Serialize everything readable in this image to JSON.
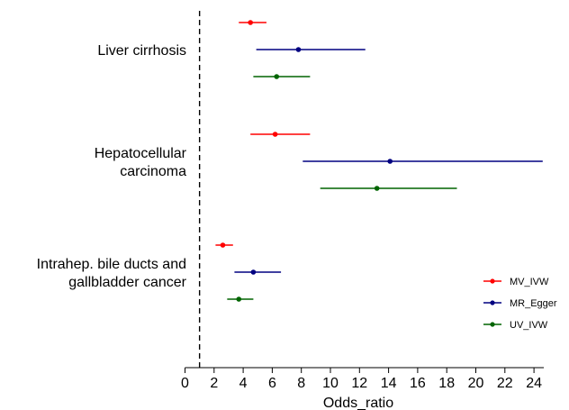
{
  "chart_data": {
    "type": "forest",
    "xlabel": "Odds_ratio",
    "xlim": [
      0,
      25
    ],
    "xticks": [
      0,
      2,
      4,
      6,
      8,
      10,
      12,
      14,
      16,
      18,
      20,
      22,
      24
    ],
    "reference_line": 1,
    "grid": false,
    "legend_position": "bottom-right",
    "series": [
      {
        "name": "MV_IVW",
        "color": "#ff0000"
      },
      {
        "name": "MR_Egger",
        "color": "#000080"
      },
      {
        "name": "UV_IVW",
        "color": "#006400"
      }
    ],
    "groups": [
      {
        "label_lines": [
          "Liver cirrhosis"
        ],
        "estimates": [
          {
            "series": "MV_IVW",
            "or": 4.5,
            "lo": 3.7,
            "hi": 5.6
          },
          {
            "series": "MR_Egger",
            "or": 7.8,
            "lo": 4.9,
            "hi": 12.4
          },
          {
            "series": "UV_IVW",
            "or": 6.3,
            "lo": 4.7,
            "hi": 8.6
          }
        ]
      },
      {
        "label_lines": [
          "Hepatocellular",
          "carcinoma"
        ],
        "estimates": [
          {
            "series": "MV_IVW",
            "or": 6.2,
            "lo": 4.5,
            "hi": 8.6
          },
          {
            "series": "MR_Egger",
            "or": 14.1,
            "lo": 8.1,
            "hi": 24.6
          },
          {
            "series": "UV_IVW",
            "or": 13.2,
            "lo": 9.3,
            "hi": 18.7
          }
        ]
      },
      {
        "label_lines": [
          "Intrahep. bile ducts and",
          "gallbladder cancer"
        ],
        "estimates": [
          {
            "series": "MV_IVW",
            "or": 2.6,
            "lo": 2.1,
            "hi": 3.3
          },
          {
            "series": "MR_Egger",
            "or": 4.7,
            "lo": 3.4,
            "hi": 6.6
          },
          {
            "series": "UV_IVW",
            "or": 3.7,
            "lo": 2.9,
            "hi": 4.7
          }
        ]
      }
    ]
  }
}
